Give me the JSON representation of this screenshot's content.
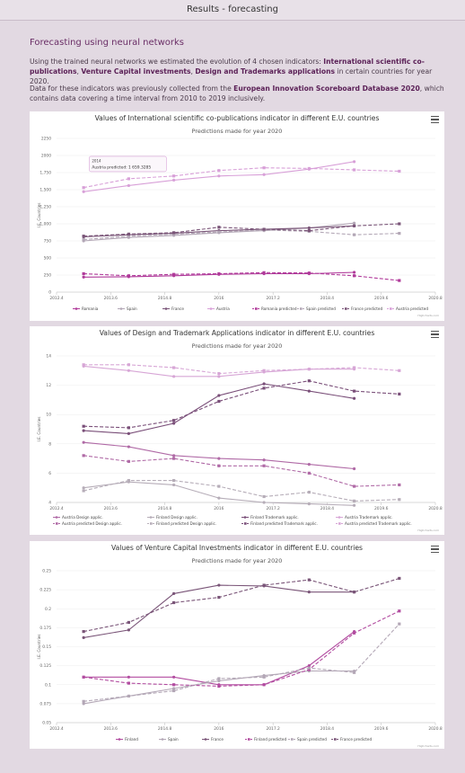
{
  "page": {
    "title": "Results - forecasting",
    "heading": "Forecasting using neural networks",
    "p1_a": "Using the trained neural networks we estimated the evolution of 4 chosen indicators: ",
    "p1_b1": "International scientific co-publications",
    "p1_c": ", ",
    "p1_b2": "Venture Capital investments",
    "p1_d": ", ",
    "p1_b3": "Design and Trademarks applications",
    "p1_e": " in certain countries for year 2020.",
    "p2_a": "Data for these indicators was previously collected from the ",
    "p2_b": "European Innovation Scoreboard Database 2020",
    "p2_c": ", which contains data covering a time interval from 2010 to 2019 inclusively."
  },
  "colors": {
    "Romania": "#b03a9a",
    "Spain": "#b3a7b6",
    "France": "#7a5578",
    "Austria": "#d8a0d8",
    "Finland": "#b24ca0",
    "AustriaD": "#b06aa6",
    "FinlandD": "#b6adb8",
    "FinlandT": "#7a4f79",
    "AustriaT": "#d7a6d6"
  },
  "chart_data": [
    {
      "type": "line",
      "title": "Values of International scientific co-publications indicator in different E.U. countries",
      "subtitle": "Predictions made for year 2020",
      "ylabel": "I.E. Countries",
      "xlim": [
        2012.4,
        2020.8
      ],
      "xticks": [
        "2012.4",
        "2013.6",
        "2014.8",
        "2016",
        "2017.2",
        "2018.4",
        "2019.6",
        "2020.8"
      ],
      "ylim": [
        0,
        2250
      ],
      "yticks": [
        "0",
        "250",
        "500",
        "750",
        "1,000",
        "1,250",
        "1,500",
        "1,750",
        "2000",
        "2250"
      ],
      "tooltip_line1": "2014",
      "tooltip_line2": "Austria predicted: 1 659.3285",
      "legend": [
        "Romania",
        "Spain",
        "France",
        "Austria",
        "Romania predicted",
        "Spain predicted",
        "France predicted",
        "Austria predicted"
      ],
      "credit": "Highcharts.com",
      "series": [
        {
          "name": "Romania",
          "color": "Romania",
          "dash": false,
          "x": [
            2013,
            2014,
            2015,
            2016,
            2017,
            2018,
            2019
          ],
          "values": [
            220,
            225,
            240,
            260,
            270,
            270,
            290
          ]
        },
        {
          "name": "Spain",
          "color": "Spain",
          "dash": false,
          "x": [
            2013,
            2014,
            2015,
            2016,
            2017,
            2018,
            2019
          ],
          "values": [
            750,
            800,
            830,
            870,
            900,
            940,
            1010
          ]
        },
        {
          "name": "France",
          "color": "France",
          "dash": false,
          "x": [
            2013,
            2014,
            2015,
            2016,
            2017,
            2018,
            2019
          ],
          "values": [
            810,
            840,
            860,
            900,
            920,
            940,
            970
          ]
        },
        {
          "name": "Austria",
          "color": "Austria",
          "dash": false,
          "x": [
            2013,
            2014,
            2015,
            2016,
            2017,
            2018,
            2019
          ],
          "values": [
            1470,
            1560,
            1640,
            1700,
            1720,
            1800,
            1910
          ]
        },
        {
          "name": "Romania predicted",
          "color": "Romania",
          "dash": true,
          "x": [
            2013,
            2014,
            2015,
            2016,
            2017,
            2018,
            2019,
            2020
          ],
          "values": [
            270,
            240,
            260,
            270,
            285,
            280,
            240,
            170
          ]
        },
        {
          "name": "Spain predicted",
          "color": "Spain",
          "dash": true,
          "x": [
            2013,
            2014,
            2015,
            2016,
            2017,
            2018,
            2019,
            2020
          ],
          "values": [
            770,
            820,
            850,
            880,
            910,
            890,
            840,
            860
          ]
        },
        {
          "name": "France predicted",
          "color": "France",
          "dash": true,
          "x": [
            2013,
            2014,
            2015,
            2016,
            2017,
            2018,
            2019,
            2020
          ],
          "values": [
            820,
            850,
            870,
            950,
            920,
            900,
            970,
            1000
          ]
        },
        {
          "name": "Austria predicted",
          "color": "Austria",
          "dash": true,
          "x": [
            2013,
            2014,
            2015,
            2016,
            2017,
            2018,
            2019,
            2020
          ],
          "values": [
            1530,
            1659.3285,
            1700,
            1780,
            1820,
            1810,
            1790,
            1770
          ]
        }
      ]
    },
    {
      "type": "line",
      "title": "Values of Design and Trademark Applications indicator in different E.U. countries",
      "subtitle": "Predictions made for year 2020",
      "ylabel": "I.E. Countries",
      "xlim": [
        2012.4,
        2020.8
      ],
      "xticks": [
        "2012.4",
        "2013.6",
        "2014.8",
        "2016",
        "2017.2",
        "2018.4",
        "2019.6",
        "2020.8"
      ],
      "ylim": [
        4,
        14
      ],
      "yticks": [
        "4",
        "6",
        "8",
        "10",
        "12",
        "14"
      ],
      "legend": [
        "Austria Design applic.",
        "Finland Design applic.",
        "Finland Trademark applic.",
        "Austria Trademark applic.",
        "Austria predicted Design applic.",
        "Finland predicted Design applic.",
        "Finland predicted Trademark applic.",
        "Austria predicted Trademark applic."
      ],
      "credit": "Highcharts.com",
      "series": [
        {
          "name": "Austria Design applic.",
          "color": "AustriaD",
          "dash": false,
          "x": [
            2013,
            2014,
            2015,
            2016,
            2017,
            2018,
            2019
          ],
          "values": [
            8.1,
            7.8,
            7.2,
            7.0,
            6.9,
            6.6,
            6.3
          ]
        },
        {
          "name": "Finland Design applic.",
          "color": "FinlandD",
          "dash": false,
          "x": [
            2013,
            2014,
            2015,
            2016,
            2017,
            2018,
            2019
          ],
          "values": [
            5.0,
            5.4,
            5.2,
            4.3,
            4.0,
            3.9,
            3.8
          ]
        },
        {
          "name": "Finland Trademark applic.",
          "color": "FinlandT",
          "dash": false,
          "x": [
            2013,
            2014,
            2015,
            2016,
            2017,
            2018,
            2019
          ],
          "values": [
            8.9,
            8.7,
            9.4,
            11.3,
            12.1,
            11.6,
            11.1
          ]
        },
        {
          "name": "Austria Trademark applic.",
          "color": "AustriaT",
          "dash": false,
          "x": [
            2013,
            2014,
            2015,
            2016,
            2017,
            2018,
            2019
          ],
          "values": [
            13.3,
            13.0,
            12.6,
            12.6,
            12.9,
            13.1,
            13.1
          ]
        },
        {
          "name": "Austria predicted Design applic.",
          "color": "AustriaD",
          "dash": true,
          "x": [
            2013,
            2014,
            2015,
            2016,
            2017,
            2018,
            2019,
            2020
          ],
          "values": [
            7.2,
            6.8,
            7.0,
            6.5,
            6.5,
            6.0,
            5.1,
            5.2
          ]
        },
        {
          "name": "Finland predicted Design applic.",
          "color": "FinlandD",
          "dash": true,
          "x": [
            2013,
            2014,
            2015,
            2016,
            2017,
            2018,
            2019,
            2020
          ],
          "values": [
            4.8,
            5.5,
            5.5,
            5.1,
            4.4,
            4.7,
            4.1,
            4.2
          ]
        },
        {
          "name": "Finland predicted Trademark applic.",
          "color": "FinlandT",
          "dash": true,
          "x": [
            2013,
            2014,
            2015,
            2016,
            2017,
            2018,
            2019,
            2020
          ],
          "values": [
            9.2,
            9.1,
            9.6,
            10.9,
            11.8,
            12.3,
            11.6,
            11.4
          ]
        },
        {
          "name": "Austria predicted Trademark applic.",
          "color": "AustriaT",
          "dash": true,
          "x": [
            2013,
            2014,
            2015,
            2016,
            2017,
            2018,
            2019,
            2020
          ],
          "values": [
            13.4,
            13.4,
            13.2,
            12.8,
            13.0,
            13.1,
            13.2,
            13.0
          ]
        }
      ]
    },
    {
      "type": "line",
      "title": "Values of Venture Capital Investments indicator in different E.U. countries",
      "subtitle": "Predictions made for year 2020",
      "ylabel": "I.E. Countries",
      "xlim": [
        2012.4,
        2020.8
      ],
      "xticks": [
        "2012.4",
        "2013.6",
        "2014.8",
        "2016",
        "2017.2",
        "2018.4",
        "2019.6",
        "2020.8"
      ],
      "ylim": [
        0.05,
        0.25
      ],
      "yticks": [
        "0.05",
        "0.075",
        "0.1",
        "0.125",
        "0.15",
        "0.175",
        "0.2",
        "0.225",
        "0.25"
      ],
      "legend": [
        "Finland",
        "Spain",
        "France",
        "Finland predicted",
        "Spain predicted",
        "France predicted"
      ],
      "credit": "Highcharts.com",
      "series": [
        {
          "name": "Finland",
          "color": "Finland",
          "dash": false,
          "x": [
            2013,
            2014,
            2015,
            2016,
            2017,
            2018,
            2019
          ],
          "values": [
            0.11,
            0.11,
            0.11,
            0.1,
            0.1,
            0.125,
            0.17
          ]
        },
        {
          "name": "Spain",
          "color": "Spain",
          "dash": false,
          "x": [
            2013,
            2014,
            2015,
            2016,
            2017,
            2018,
            2019
          ],
          "values": [
            0.075,
            0.085,
            0.095,
            0.105,
            0.112,
            0.118,
            0.118
          ]
        },
        {
          "name": "France",
          "color": "France",
          "dash": false,
          "x": [
            2013,
            2014,
            2015,
            2016,
            2017,
            2018,
            2019
          ],
          "values": [
            0.162,
            0.172,
            0.22,
            0.231,
            0.23,
            0.222,
            0.222
          ]
        },
        {
          "name": "Finland predicted",
          "color": "Finland",
          "dash": true,
          "x": [
            2013,
            2014,
            2015,
            2016,
            2017,
            2018,
            2019,
            2020
          ],
          "values": [
            0.11,
            0.102,
            0.1,
            0.098,
            0.1,
            0.12,
            0.168,
            0.197
          ]
        },
        {
          "name": "Spain predicted",
          "color": "Spain",
          "dash": true,
          "x": [
            2013,
            2014,
            2015,
            2016,
            2017,
            2018,
            2019,
            2020
          ],
          "values": [
            0.078,
            0.085,
            0.092,
            0.108,
            0.11,
            0.122,
            0.116,
            0.18
          ]
        },
        {
          "name": "France predicted",
          "color": "France",
          "dash": true,
          "x": [
            2013,
            2014,
            2015,
            2016,
            2017,
            2018,
            2019,
            2020
          ],
          "values": [
            0.17,
            0.182,
            0.208,
            0.215,
            0.231,
            0.238,
            0.222,
            0.24
          ]
        }
      ]
    }
  ]
}
